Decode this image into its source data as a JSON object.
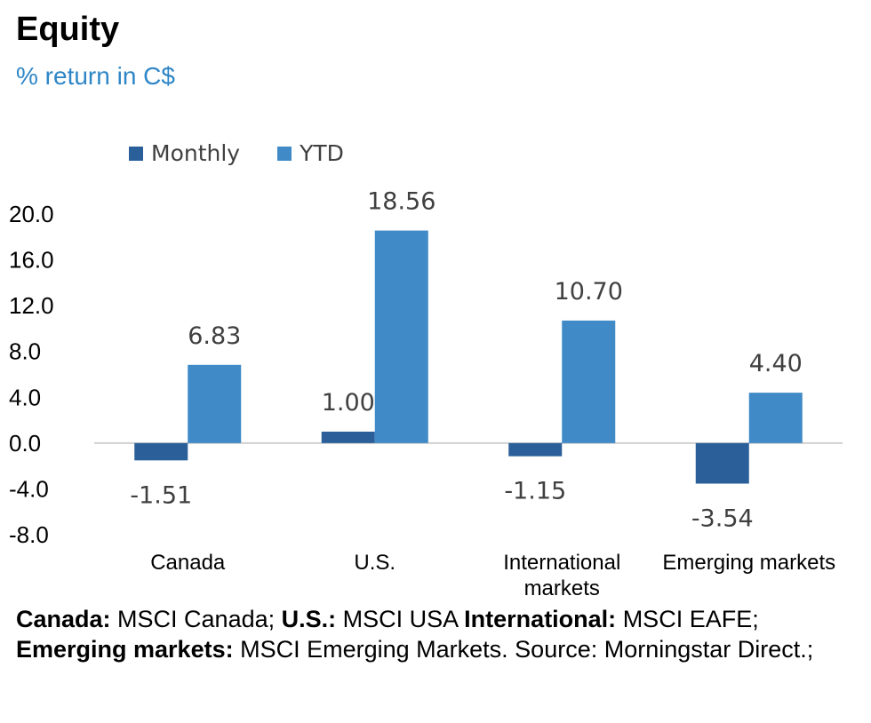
{
  "header": {
    "title": "Equity",
    "subtitle": "% return in C$"
  },
  "colors": {
    "monthly": "#2a5f99",
    "ytd": "#3f8ac7",
    "subtitle": "#2f86c6",
    "axis_line": "#d0d0d0",
    "data_label": "#404040"
  },
  "chart_data": {
    "type": "bar",
    "title": "Equity",
    "subtitle": "% return in C$",
    "xlabel": "",
    "ylabel": "",
    "categories": [
      [
        "Canada"
      ],
      [
        "U.S."
      ],
      [
        "International",
        "markets"
      ],
      [
        "Emerging markets"
      ]
    ],
    "series": [
      {
        "name": "Monthly",
        "values": [
          -1.51,
          1.0,
          -1.15,
          -3.54
        ],
        "labels": [
          "-1.51",
          "1.00",
          "-1.15",
          "-3.54"
        ]
      },
      {
        "name": "YTD",
        "values": [
          6.83,
          18.56,
          10.7,
          4.4
        ],
        "labels": [
          "6.83",
          "18.56",
          "10.70",
          "4.40"
        ]
      }
    ],
    "yticks": [
      -8,
      -4,
      0,
      4,
      8,
      12,
      16,
      20
    ],
    "ytick_labels": [
      "-8.0",
      "-4.0",
      "0.0",
      "4.0",
      "8.0",
      "12.0",
      "16.0",
      "20.0"
    ],
    "ylim": [
      -8,
      20
    ],
    "grid": false,
    "legend_position": "top-left"
  },
  "footnote": {
    "parts": [
      {
        "label": "Canada:",
        "text": " MSCI Canada; "
      },
      {
        "label": "U.S.:",
        "text": " MSCI USA "
      },
      {
        "label": "International:",
        "text": " MSCI EAFE; "
      },
      {
        "label": "Emerging markets:",
        "text": " MSCI Emerging Markets. Source: Morningstar Direct.;"
      }
    ]
  }
}
